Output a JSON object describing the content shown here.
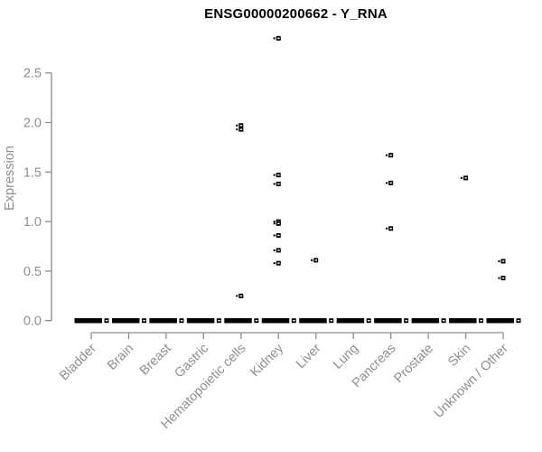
{
  "title": "ENSG00000200662 - Y_RNA",
  "chart_data": {
    "type": "scatter",
    "title": "ENSG00000200662 - Y_RNA",
    "xlabel": "",
    "ylabel": "Expression",
    "ylim": [
      0.0,
      2.5
    ],
    "yticks": [
      "0.0",
      "0.5",
      "1.0",
      "1.5",
      "2.0",
      "2.5"
    ],
    "grid": false,
    "legend_position": "none",
    "marker": "small-black-square-with-left-dash",
    "categories": [
      "Bladder",
      "Brain",
      "Breast",
      "Gastric",
      "Hematopoietic cells",
      "Kidney",
      "Liver",
      "Lung",
      "Pancreas",
      "Prostate",
      "Skin",
      "Unknown / Other"
    ],
    "series": [
      {
        "category": "Bladder",
        "zero_cluster": true,
        "points": []
      },
      {
        "category": "Brain",
        "zero_cluster": true,
        "points": []
      },
      {
        "category": "Breast",
        "zero_cluster": true,
        "points": []
      },
      {
        "category": "Gastric",
        "zero_cluster": true,
        "points": []
      },
      {
        "category": "Hematopoietic cells",
        "zero_cluster": true,
        "points": [
          1.97,
          1.93,
          0.25
        ]
      },
      {
        "category": "Kidney",
        "zero_cluster": true,
        "points": [
          2.85,
          1.47,
          1.38,
          1.0,
          0.98,
          0.86,
          0.71,
          0.58
        ]
      },
      {
        "category": "Liver",
        "zero_cluster": true,
        "points": [
          0.61
        ]
      },
      {
        "category": "Lung",
        "zero_cluster": true,
        "points": []
      },
      {
        "category": "Pancreas",
        "zero_cluster": true,
        "points": [
          1.67,
          1.39,
          0.93
        ]
      },
      {
        "category": "Prostate",
        "zero_cluster": true,
        "points": []
      },
      {
        "category": "Skin",
        "zero_cluster": true,
        "points": [
          1.44
        ]
      },
      {
        "category": "Unknown / Other",
        "zero_cluster": true,
        "points": [
          0.6,
          0.43
        ]
      }
    ],
    "colors": {
      "points": "#000000",
      "axis": "#8d8d8d",
      "tick_text": "#8e8e8e",
      "title": "#000000",
      "background": "#ffffff"
    }
  }
}
